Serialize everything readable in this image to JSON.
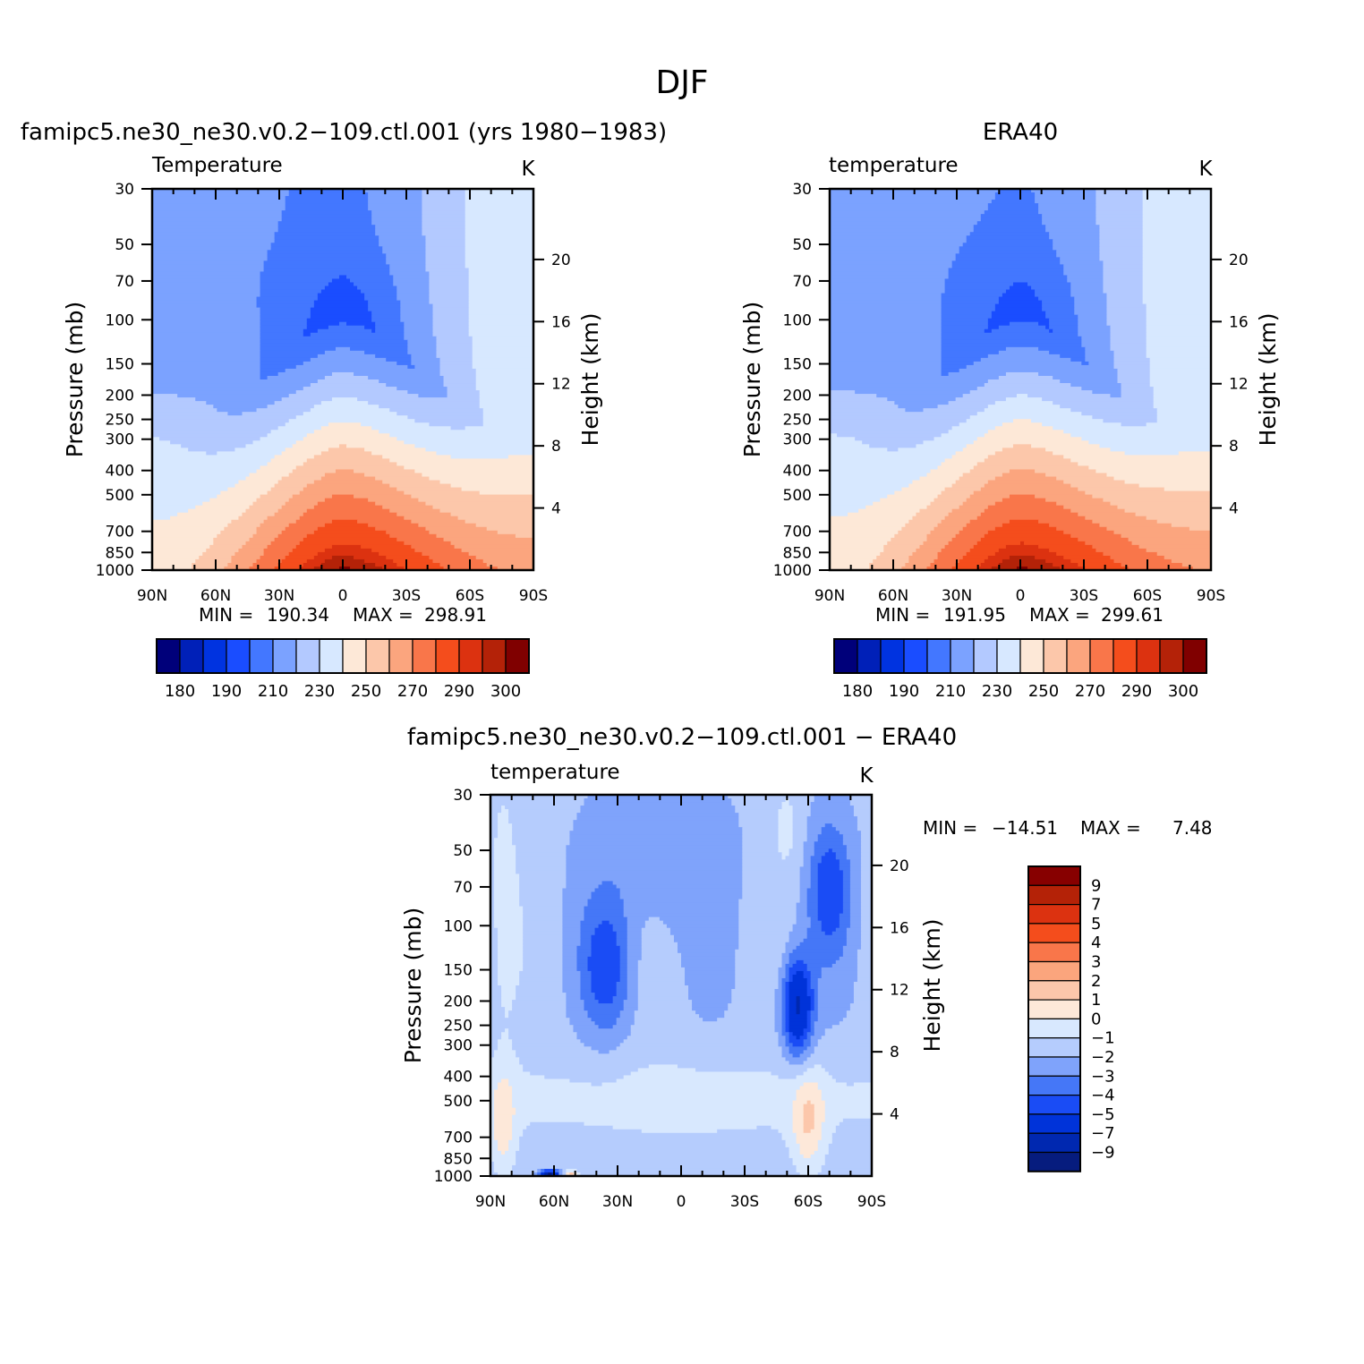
{
  "figure": {
    "title": "DJF"
  },
  "colors": {
    "abs_palette": [
      "#00007a",
      "#0020b8",
      "#0033e0",
      "#1a4dff",
      "#4377ff",
      "#7ba2ff",
      "#b3c9ff",
      "#d7e8ff",
      "#fde8d7",
      "#fcc7aa",
      "#fba57e",
      "#f9764a",
      "#f44d1c",
      "#dc3210",
      "#b42208",
      "#800000"
    ],
    "diff_palette": [
      "#061c7e",
      "#0028b0",
      "#0033d9",
      "#1a4cf5",
      "#4577f7",
      "#7fa3fb",
      "#b5ccfd",
      "#d8e8fe",
      "#fde8d9",
      "#fcc7ab",
      "#fba57d",
      "#f9764a",
      "#f44d1c",
      "#dc3210",
      "#b42207",
      "#870000"
    ],
    "no_data": "#ffffff"
  },
  "chart_data": [
    {
      "id": "model",
      "type": "heatmap",
      "title": "famipc5.ne30_ne30.v0.2-109.ctl.001 (yrs 1980-1983)",
      "subtitle_left": "Temperature",
      "units": "K",
      "ylabel": "Pressure (mb)",
      "ylabel_right": "Height (km)",
      "x_ticks": [
        "90N",
        "60N",
        "30N",
        "0",
        "30S",
        "60S",
        "90S"
      ],
      "x_range": [
        90,
        -90
      ],
      "y_ticks": [
        30,
        50,
        70,
        100,
        150,
        200,
        250,
        300,
        400,
        500,
        700,
        850,
        1000
      ],
      "y_range": [
        30,
        1000
      ],
      "height_ticks": [
        20,
        16,
        12,
        8,
        4
      ],
      "stats": {
        "min_label": "MIN =",
        "min": "190.34",
        "max_label": "MAX =",
        "max": "298.91"
      },
      "colorbar": {
        "orientation": "horizontal",
        "levels": [
          180,
          185,
          190,
          200,
          210,
          220,
          230,
          240,
          250,
          260,
          270,
          280,
          290,
          295,
          300
        ],
        "tick_labels": [
          "180",
          "190",
          "210",
          "230",
          "250",
          "270",
          "290",
          "300"
        ]
      },
      "field": {
        "kind": "temperature",
        "tropopause_T": 196,
        "surface_equator_T": 301,
        "surface_pole_N_T": 246,
        "surface_pole_S_T": 268,
        "strat_T_north": 212,
        "strat_T_south": 238
      }
    },
    {
      "id": "obs",
      "type": "heatmap",
      "title": "ERA40",
      "subtitle_left": "temperature",
      "units": "K",
      "ylabel": "Pressure (mb)",
      "ylabel_right": "Height (km)",
      "x_ticks": [
        "90N",
        "60N",
        "30N",
        "0",
        "30S",
        "60S",
        "90S"
      ],
      "x_range": [
        90,
        -90
      ],
      "y_ticks": [
        30,
        50,
        70,
        100,
        150,
        200,
        250,
        300,
        400,
        500,
        700,
        850,
        1000
      ],
      "y_range": [
        30,
        1000
      ],
      "height_ticks": [
        20,
        16,
        12,
        8,
        4
      ],
      "stats": {
        "min_label": "MIN =",
        "min": "191.95",
        "max_label": "MAX =",
        "max": "299.61"
      },
      "colorbar": {
        "orientation": "horizontal",
        "levels": [
          180,
          185,
          190,
          200,
          210,
          220,
          230,
          240,
          250,
          260,
          270,
          280,
          290,
          295,
          300
        ],
        "tick_labels": [
          "180",
          "190",
          "210",
          "230",
          "250",
          "270",
          "290",
          "300"
        ]
      },
      "field": {
        "kind": "temperature",
        "tropopause_T": 197,
        "surface_equator_T": 301,
        "surface_pole_N_T": 246,
        "surface_pole_S_T": 270,
        "strat_T_north": 212,
        "strat_T_south": 238
      }
    },
    {
      "id": "diff",
      "type": "heatmap",
      "title": "famipc5.ne30_ne30.v0.2-109.ctl.001 - ERA40",
      "subtitle_left": "temperature",
      "units": "K",
      "ylabel": "Pressure (mb)",
      "ylabel_right": "Height (km)",
      "x_ticks": [
        "90N",
        "60N",
        "30N",
        "0",
        "30S",
        "60S",
        "90S"
      ],
      "x_range": [
        90,
        -90
      ],
      "y_ticks": [
        30,
        50,
        70,
        100,
        150,
        200,
        250,
        300,
        400,
        500,
        700,
        850,
        1000
      ],
      "y_range": [
        30,
        1000
      ],
      "height_ticks": [
        20,
        16,
        12,
        8,
        4
      ],
      "stats": {
        "min_label": "MIN =",
        "min": "-14.51",
        "max_label": "MAX =",
        "max": "7.48"
      },
      "colorbar": {
        "orientation": "vertical",
        "levels": [
          -9,
          -7,
          -5,
          -4,
          -3,
          -2,
          -1,
          0,
          1,
          2,
          3,
          4,
          5,
          7,
          9
        ],
        "tick_labels": [
          "9",
          "7",
          "5",
          "4",
          "3",
          "2",
          "1",
          "0",
          "-1",
          "-2",
          "-3",
          "-4",
          "-5",
          "-7",
          "-9"
        ]
      },
      "field": {
        "kind": "difference",
        "anomalies": [
          {
            "lat": 84,
            "p": 80,
            "amp": 1.2,
            "wlat": 8,
            "wz": 1.4
          },
          {
            "lat": 84,
            "p": 650,
            "amp": 1.8,
            "wlat": 6,
            "wz": 0.5
          },
          {
            "lat": -60,
            "p": 620,
            "amp": 2.3,
            "wlat": 8,
            "wz": 0.5
          },
          {
            "lat": -55,
            "p": 210,
            "amp": -5.5,
            "wlat": 7,
            "wz": 0.45
          },
          {
            "lat": 35,
            "p": 150,
            "amp": -2.6,
            "wlat": 12,
            "wz": 0.6
          },
          {
            "lat": -70,
            "p": 70,
            "amp": -2.8,
            "wlat": 10,
            "wz": 0.6
          },
          {
            "lat": 10,
            "p": 55,
            "amp": -1.2,
            "wlat": 30,
            "wz": 0.7
          },
          {
            "lat": -50,
            "p": 40,
            "amp": 1.0,
            "wlat": 8,
            "wz": 0.5
          },
          {
            "lat": 62,
            "p": 990,
            "amp": -8.0,
            "wlat": 4,
            "wz": 0.04
          },
          {
            "lat": 52,
            "p": 990,
            "amp": 3.5,
            "wlat": 3,
            "wz": 0.04
          }
        ],
        "background": -1.8,
        "mid_trop_bias": 1.3
      }
    }
  ]
}
